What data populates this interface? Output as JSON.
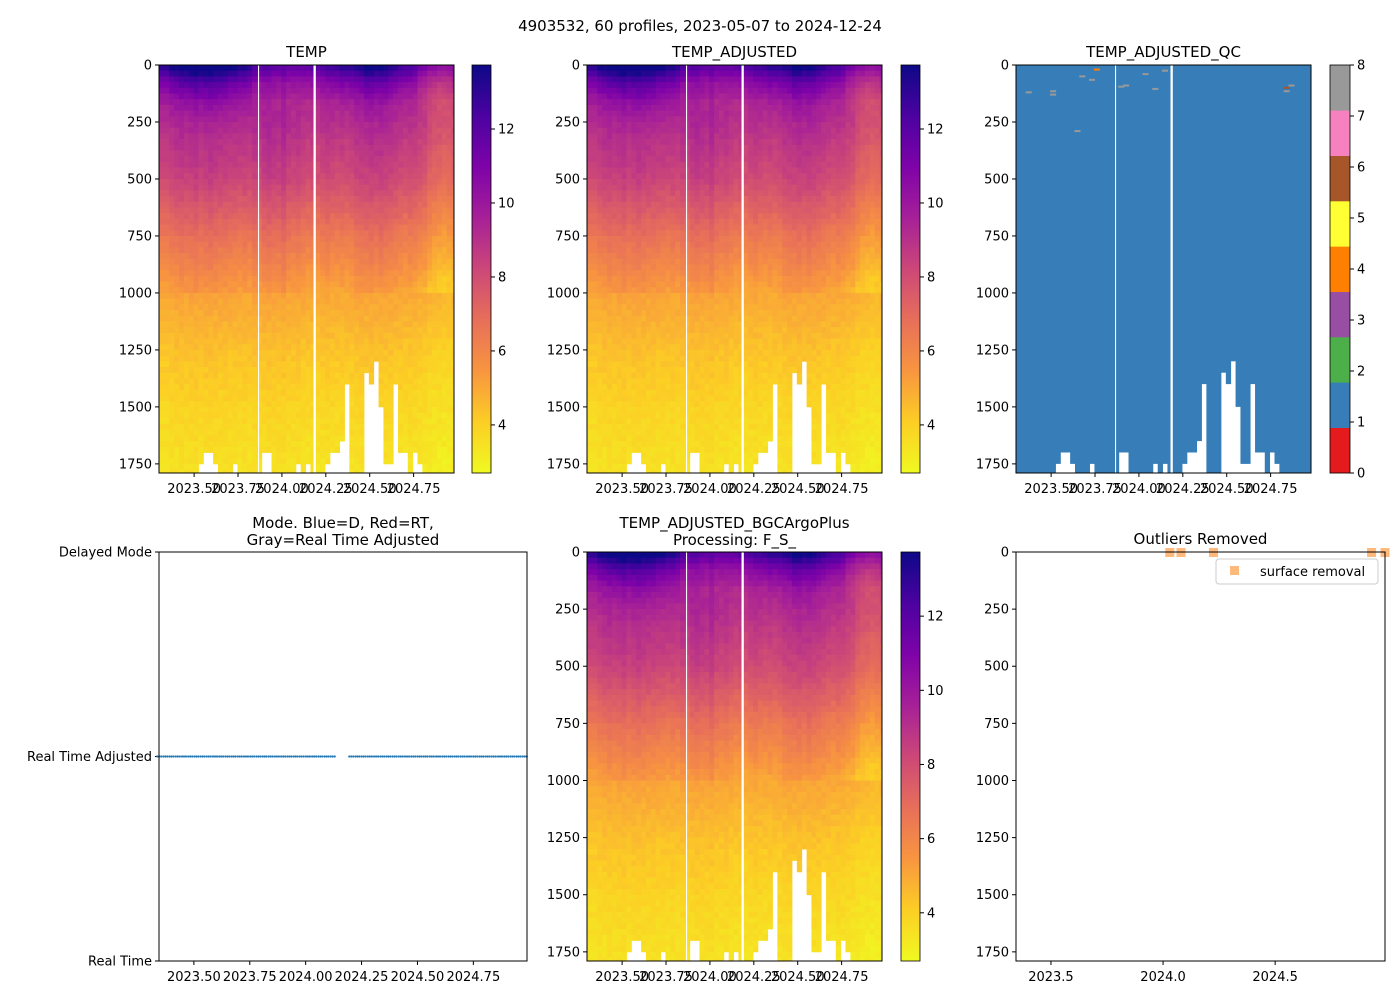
{
  "suptitle": "4903532, 60 profiles, 2023-05-07 to 2024-12-24",
  "chart_data": {
    "type": "heatmap",
    "n_profiles": 60,
    "time_range": [
      2023.345,
      2024.98
    ],
    "ylim": [
      1790,
      0
    ],
    "xlim_heatmap": [
      2023.3,
      2024.98
    ],
    "xlim_wide": [
      2023.344,
      2024.99
    ],
    "depth_step": 25,
    "gaps": [
      [
        2023.864,
        2023.87
      ],
      [
        2024.18,
        2024.193
      ]
    ],
    "temp_colorbar": {
      "vmin": 2.7,
      "vmax": 13.73,
      "ticks": [
        4,
        6,
        8,
        10,
        12
      ],
      "tick_labels": [
        "4",
        "6",
        "8",
        "10",
        "12"
      ]
    },
    "base_profile": {
      "depth": [
        0,
        60,
        150,
        300,
        500,
        750,
        1000,
        1250,
        1500,
        1800
      ],
      "temp": [
        12.2,
        10.6,
        9.4,
        8.8,
        8.0,
        6.4,
        5.0,
        4.3,
        3.8,
        3.3
      ]
    },
    "profile_offsets": [
      0.0,
      0.2,
      0.3,
      0.4,
      0.3,
      0.4,
      0.5,
      0.3,
      0.4,
      0.5,
      0.4,
      0.3,
      0.3,
      0.2,
      0.2,
      0.1,
      0.2,
      0.1,
      0.3,
      0.1,
      0.4,
      0.5,
      0.4,
      0.3,
      0.6,
      0.2,
      0.1,
      0.2,
      0.0,
      -0.1,
      0.0,
      -0.2,
      0.0,
      0.1,
      0.0,
      -0.1,
      0.0,
      -0.1,
      0.0,
      0.2,
      0.3,
      0.3,
      0.4,
      0.3,
      0.4,
      0.3,
      0.2,
      0.1,
      0.0,
      -0.1,
      0.0,
      -0.1,
      -0.3,
      -0.4,
      -0.8,
      -1.0,
      -1.1,
      -1.2,
      -1.1,
      -1.0
    ],
    "profile_max_depth": [
      1790,
      1790,
      1790,
      1790,
      1790,
      1790,
      1790,
      1750,
      1700,
      1700,
      1750,
      1790,
      1790,
      1790,
      1750,
      1790,
      1790,
      1790,
      1790,
      1790,
      1700,
      1700,
      1790,
      1790,
      1790,
      1790,
      1790,
      1750,
      1790,
      1750,
      1790,
      1790,
      1790,
      1750,
      1700,
      1700,
      1650,
      1400,
      1790,
      1790,
      1790,
      1350,
      1400,
      1300,
      1500,
      1750,
      1750,
      1400,
      1700,
      1700,
      1790,
      1700,
      1750,
      1790,
      1790,
      1790,
      1790,
      1790,
      1790,
      1790
    ],
    "panels": [
      {
        "title": "TEMP",
        "kind": "temp"
      },
      {
        "title": "TEMP_ADJUSTED",
        "kind": "temp"
      },
      {
        "title": "TEMP_ADJUSTED_QC",
        "kind": "qc"
      },
      {
        "title_lines": [
          "Mode. Blue=D, Red=RT,",
          "Gray=Real Time Adjusted"
        ],
        "kind": "mode"
      },
      {
        "title_lines": [
          "TEMP_ADJUSTED_BGCArgoPlus",
          "Processing: F_S_"
        ],
        "kind": "temp"
      },
      {
        "title": "Outliers Removed",
        "kind": "outliers"
      }
    ],
    "y_ticks": [
      0,
      250,
      500,
      750,
      1000,
      1250,
      1500,
      1750
    ],
    "y_tick_labels": [
      "0",
      "250",
      "500",
      "750",
      "1000",
      "1250",
      "1500",
      "1750"
    ],
    "x_ticks_heatmap": [
      2023.5,
      2023.75,
      2024.0,
      2024.25,
      2024.5,
      2024.75
    ],
    "x_tick_labels_heatmap": [
      "2023.50",
      "2023.75",
      "2024.00",
      "2024.25",
      "2024.50",
      "2024.75"
    ],
    "x_ticks_outliers": [
      2023.5,
      2024.0,
      2024.5
    ],
    "x_tick_labels_outliers": [
      "2023.5",
      "2024.0",
      "2024.5"
    ],
    "qc_colorbar": {
      "colors": [
        "#e41a1c",
        "#377eb8",
        "#4daf4a",
        "#984ea3",
        "#ff7f00",
        "#ffff33",
        "#a65628",
        "#f781bf",
        "#999999"
      ],
      "ticks": [
        0,
        1,
        2,
        3,
        4,
        5,
        6,
        7,
        8
      ],
      "tick_labels": [
        "0",
        "1",
        "2",
        "3",
        "4",
        "5",
        "6",
        "7",
        "8"
      ],
      "base_flag": 1,
      "flag_marks": [
        {
          "profile": 1,
          "depth": 120,
          "flag": 8
        },
        {
          "profile": 6,
          "depth": 115,
          "flag": 8
        },
        {
          "profile": 6,
          "depth": 130,
          "flag": 8
        },
        {
          "profile": 11,
          "depth": 290,
          "flag": 8
        },
        {
          "profile": 12,
          "depth": 50,
          "flag": 8
        },
        {
          "profile": 14,
          "depth": 65,
          "flag": 8
        },
        {
          "profile": 15,
          "depth": 20,
          "flag": 4
        },
        {
          "profile": 20,
          "depth": 95,
          "flag": 8
        },
        {
          "profile": 21,
          "depth": 90,
          "flag": 8
        },
        {
          "profile": 25,
          "depth": 40,
          "flag": 8
        },
        {
          "profile": 27,
          "depth": 105,
          "flag": 8
        },
        {
          "profile": 29,
          "depth": 25,
          "flag": 8
        },
        {
          "profile": 54,
          "depth": 100,
          "flag": 6
        },
        {
          "profile": 54,
          "depth": 115,
          "flag": 8
        },
        {
          "profile": 55,
          "depth": 90,
          "flag": 8
        }
      ]
    },
    "mode": {
      "y_tick_labels": [
        "Delayed Mode",
        "Real Time Adjusted",
        "Real Time"
      ],
      "values": "all profiles Real Time Adjusted",
      "color": "#1f77b4",
      "missing_profiles": [
        29,
        30
      ]
    },
    "outliers": {
      "legend": "surface removal",
      "color": "#ff7f0e",
      "points": [
        {
          "x": 2024.03,
          "depth": 0
        },
        {
          "x": 2024.08,
          "depth": 0
        },
        {
          "x": 2024.225,
          "depth": 0
        },
        {
          "x": 2024.93,
          "depth": 0
        },
        {
          "x": 2024.99,
          "depth": 0
        }
      ]
    }
  }
}
